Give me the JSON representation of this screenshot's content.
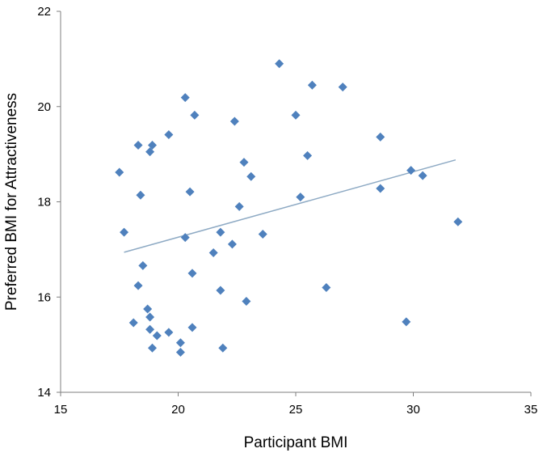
{
  "chart_data": {
    "type": "scatter",
    "xlabel": "Participant BMI",
    "ylabel": "Preferred BMI for Attractiveness",
    "xlim": [
      15,
      35
    ],
    "ylim": [
      14,
      22
    ],
    "xticks": [
      "15",
      "20",
      "25",
      "30",
      "35"
    ],
    "yticks": [
      "14",
      "16",
      "18",
      "20",
      "22"
    ],
    "grid": false,
    "legend": "none",
    "colors": {
      "marker": "#4f81bd",
      "trendline": "#8eaac4",
      "axis": "#7f7f7f"
    },
    "points": [
      {
        "x": 17.5,
        "y": 18.62
      },
      {
        "x": 17.7,
        "y": 17.36
      },
      {
        "x": 18.1,
        "y": 15.46
      },
      {
        "x": 18.3,
        "y": 19.19
      },
      {
        "x": 18.3,
        "y": 16.24
      },
      {
        "x": 18.4,
        "y": 18.14
      },
      {
        "x": 18.5,
        "y": 16.66
      },
      {
        "x": 18.7,
        "y": 15.75
      },
      {
        "x": 18.8,
        "y": 19.05
      },
      {
        "x": 18.9,
        "y": 19.19
      },
      {
        "x": 18.8,
        "y": 15.58
      },
      {
        "x": 18.8,
        "y": 15.32
      },
      {
        "x": 18.9,
        "y": 14.93
      },
      {
        "x": 19.1,
        "y": 15.19
      },
      {
        "x": 19.6,
        "y": 19.41
      },
      {
        "x": 19.6,
        "y": 15.26
      },
      {
        "x": 20.1,
        "y": 15.04
      },
      {
        "x": 20.1,
        "y": 14.84
      },
      {
        "x": 20.3,
        "y": 20.19
      },
      {
        "x": 20.3,
        "y": 17.25
      },
      {
        "x": 20.5,
        "y": 18.21
      },
      {
        "x": 20.6,
        "y": 16.5
      },
      {
        "x": 20.6,
        "y": 15.36
      },
      {
        "x": 20.7,
        "y": 19.82
      },
      {
        "x": 21.5,
        "y": 16.93
      },
      {
        "x": 21.8,
        "y": 17.36
      },
      {
        "x": 21.8,
        "y": 16.14
      },
      {
        "x": 21.9,
        "y": 14.93
      },
      {
        "x": 22.3,
        "y": 17.11
      },
      {
        "x": 22.4,
        "y": 19.69
      },
      {
        "x": 22.6,
        "y": 17.9
      },
      {
        "x": 22.8,
        "y": 18.83
      },
      {
        "x": 22.9,
        "y": 15.91
      },
      {
        "x": 23.1,
        "y": 18.53
      },
      {
        "x": 23.6,
        "y": 17.32
      },
      {
        "x": 24.3,
        "y": 20.9
      },
      {
        "x": 25.0,
        "y": 19.82
      },
      {
        "x": 25.2,
        "y": 18.1
      },
      {
        "x": 25.5,
        "y": 18.97
      },
      {
        "x": 25.7,
        "y": 20.45
      },
      {
        "x": 26.3,
        "y": 16.2
      },
      {
        "x": 27.0,
        "y": 20.41
      },
      {
        "x": 28.6,
        "y": 19.36
      },
      {
        "x": 28.6,
        "y": 18.28
      },
      {
        "x": 29.7,
        "y": 15.48
      },
      {
        "x": 29.9,
        "y": 18.66
      },
      {
        "x": 30.4,
        "y": 18.55
      },
      {
        "x": 31.9,
        "y": 17.58
      }
    ],
    "trendline": {
      "x": [
        17.7,
        31.8
      ],
      "y": [
        16.94,
        18.88
      ]
    }
  }
}
